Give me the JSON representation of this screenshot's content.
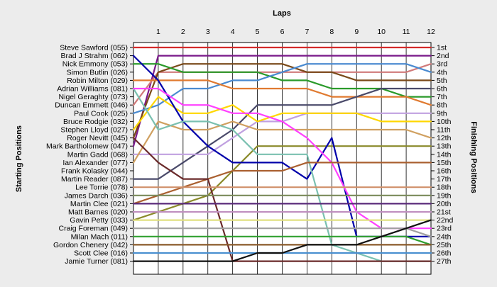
{
  "chart_data": {
    "type": "line",
    "title": "Laps",
    "ylabel_left": "Starting Positions",
    "ylabel_right": "Finishing Positions",
    "x": [
      1,
      2,
      3,
      4,
      5,
      6,
      7,
      8,
      9,
      10,
      11,
      12
    ],
    "y_range": [
      1,
      27
    ],
    "grid": "vertical",
    "starting_labels": [
      "Steve Sawford (055)",
      "Brad J Strahm (062)",
      "Nick Emmony (053)",
      "Simon Butlin (026)",
      "Robin Milton (029)",
      "Adrian Williams (081)",
      "Nigel Geraghty (073)",
      "Duncan Emmett (046)",
      "Paul Cook (025)",
      "Bruce Rodgie (032)",
      "Stephen Lloyd (027)",
      "Roger Nevitt (045)",
      "Mark Bartholomew (047)",
      "Martin Gadd (068)",
      "Ian Alexander (077)",
      "Frank Kolasky (044)",
      "Martin Reader (087)",
      "Lee Torrie (078)",
      "James Darch (036)",
      "Martin Clee (021)",
      "Matt Barnes (020)",
      "Gavin Petty (033)",
      "Craig Foreman (049)",
      "Milan Mach (011)",
      "Gordon Chenery (042)",
      "Scott Clee (016)",
      "Jamie Turner (081)"
    ],
    "finishing_labels": [
      "1st",
      "2nd",
      "3rd",
      "4th",
      "5th",
      "6th",
      "7th",
      "8th",
      "9th",
      "10th",
      "11th",
      "12th",
      "13th",
      "14th",
      "15th",
      "16th",
      "17th",
      "18th",
      "19th",
      "20th",
      "21st",
      "22nd",
      "23rd",
      "24th",
      "25th",
      "26th",
      "27th"
    ],
    "series": [
      {
        "color": "#d42a2a",
        "positions": [
          1,
          1,
          1,
          1,
          1,
          1,
          1,
          1,
          1,
          1,
          1,
          1,
          1
        ]
      },
      {
        "color": "#7a1a8a",
        "positions": [
          13,
          2,
          2,
          2,
          2,
          2,
          2,
          2,
          2,
          2,
          2,
          2,
          2
        ]
      },
      {
        "color": "#d07a7a",
        "positions": [
          8,
          4,
          4,
          4,
          4,
          4,
          4,
          4,
          4,
          4,
          4,
          4,
          3
        ]
      },
      {
        "color": "#7a4a1a",
        "positions": [
          12,
          4,
          3,
          3,
          3,
          3,
          3,
          4,
          4,
          5,
          5,
          5,
          5
        ]
      },
      {
        "color": "#2a9a2a",
        "positions": [
          3,
          3,
          4,
          4,
          4,
          4,
          5,
          5,
          6,
          6,
          6,
          7,
          7
        ]
      },
      {
        "color": "#4a8ad0",
        "positions": [
          9,
          8,
          6,
          6,
          5,
          5,
          4,
          3,
          3,
          3,
          3,
          3,
          4
        ]
      },
      {
        "color": "#e07a30",
        "positions": [
          5,
          5,
          5,
          5,
          6,
          6,
          6,
          6,
          7,
          7,
          7,
          7,
          8
        ]
      },
      {
        "color": "#4a4a6a",
        "positions": [
          17,
          17,
          15,
          13,
          11,
          8,
          8,
          8,
          8,
          7,
          6,
          6,
          6
        ]
      },
      {
        "color": "#c0a0e0",
        "positions": [
          14,
          14,
          14,
          14,
          12,
          10,
          10,
          9,
          9,
          9,
          9,
          9,
          9
        ]
      },
      {
        "color": "#ffd700",
        "positions": [
          11,
          7,
          9,
          9,
          8,
          10,
          9,
          9,
          9,
          9,
          10,
          10,
          10
        ]
      },
      {
        "color": "#d0a060",
        "positions": [
          15,
          10,
          11,
          11,
          10,
          11,
          11,
          11,
          11,
          11,
          11,
          11,
          12
        ]
      },
      {
        "color": "#8a8a2a",
        "positions": [
          22,
          21,
          20,
          19,
          16,
          13,
          13,
          13,
          13,
          13,
          13,
          13,
          13
        ]
      },
      {
        "color": "#0000aa",
        "positions": [
          2,
          5,
          10,
          13,
          15,
          15,
          15,
          17,
          12,
          24,
          24,
          24,
          24
        ]
      },
      {
        "color": "#7ac0b0",
        "positions": [
          6,
          11,
          10,
          10,
          11,
          14,
          14,
          14,
          25,
          26,
          27,
          27,
          27
        ]
      },
      {
        "color": "#ff40ff",
        "positions": [
          6,
          6,
          8,
          8,
          9,
          9,
          10,
          12,
          15,
          21,
          23,
          23,
          23
        ]
      },
      {
        "color": "#aa6030",
        "positions": [
          20,
          19,
          18,
          17,
          16,
          16,
          16,
          15,
          15,
          15,
          15,
          15,
          15
        ]
      },
      {
        "color": "#6a2a2a",
        "positions": [
          12,
          15,
          17,
          17,
          27,
          27,
          27,
          27,
          27,
          27,
          27,
          27,
          27
        ]
      },
      {
        "color": "#d0906a",
        "positions": [
          18,
          18,
          18,
          18,
          18,
          18,
          18,
          18,
          18,
          18,
          18,
          18,
          18
        ]
      },
      {
        "color": "#7a8a5a",
        "positions": [
          19,
          19,
          19,
          19,
          19,
          19,
          19,
          19,
          19,
          19,
          19,
          19,
          19
        ]
      },
      {
        "color": "#5a2a7a",
        "positions": [
          20,
          20,
          20,
          20,
          20,
          20,
          20,
          20,
          20,
          20,
          20,
          20,
          20
        ]
      },
      {
        "color": "#c090c0",
        "positions": [
          21,
          21,
          21,
          21,
          21,
          21,
          21,
          21,
          21,
          21,
          21,
          21,
          21
        ]
      },
      {
        "color": "#e0e080",
        "positions": [
          22,
          22,
          22,
          22,
          22,
          22,
          22,
          22,
          22,
          22,
          22,
          22,
          22
        ]
      },
      {
        "color": "#a0a0a0",
        "positions": [
          23,
          23,
          23,
          23,
          23,
          23,
          23,
          23,
          23,
          23,
          23,
          23,
          24
        ]
      },
      {
        "color": "#30a030",
        "positions": [
          24,
          24,
          24,
          24,
          24,
          24,
          24,
          24,
          24,
          24,
          24,
          24,
          25
        ]
      },
      {
        "color": "#8a5a2a",
        "positions": [
          25,
          25,
          25,
          25,
          25,
          25,
          25,
          25,
          25,
          25,
          25,
          25,
          25
        ]
      },
      {
        "color": "#4a90d0",
        "positions": [
          26,
          26,
          26,
          26,
          26,
          26,
          26,
          26,
          26,
          26,
          26,
          26,
          26
        ]
      },
      {
        "color": "#101010",
        "positions": [
          27,
          27,
          27,
          27,
          27,
          26,
          26,
          25,
          25,
          25,
          24,
          23,
          22
        ]
      }
    ]
  }
}
